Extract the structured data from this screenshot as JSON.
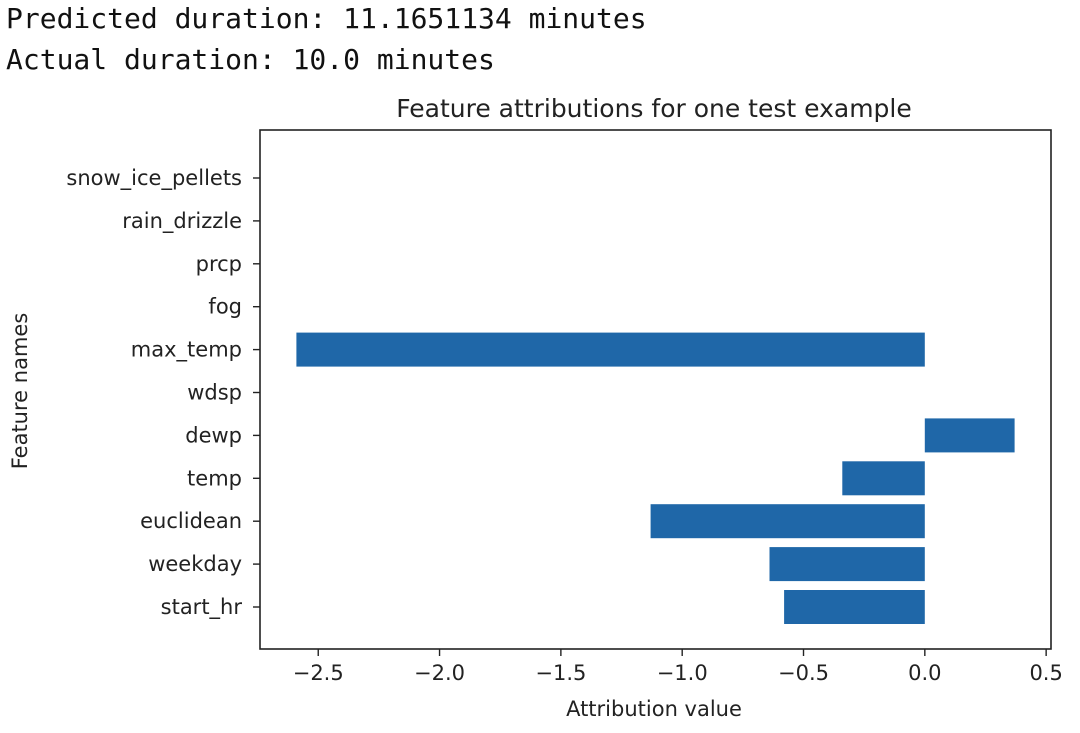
{
  "output": {
    "predicted": "Predicted duration: 11.1651134 minutes",
    "actual": "Actual duration: 10.0 minutes"
  },
  "chart_data": {
    "type": "bar",
    "orientation": "horizontal",
    "title": "Feature attributions for one test example",
    "xlabel": "Attribution value",
    "ylabel": "Feature names",
    "categories": [
      "snow_ice_pellets",
      "rain_drizzle",
      "prcp",
      "fog",
      "max_temp",
      "wdsp",
      "dewp",
      "temp",
      "euclidean",
      "weekday",
      "start_hr"
    ],
    "values": [
      0,
      0,
      0,
      0,
      -2.59,
      0,
      0.37,
      -0.34,
      -1.13,
      -0.64,
      -0.58
    ],
    "xlim": [
      -2.74,
      0.52
    ],
    "xticks": [
      -2.5,
      -2.0,
      -1.5,
      -1.0,
      -0.5,
      0.0,
      0.5
    ],
    "xtick_labels": [
      "−2.5",
      "−2.0",
      "−1.5",
      "−1.0",
      "−0.5",
      "0.0",
      "0.5"
    ],
    "bar_color": "#1f67a8",
    "grid": false
  }
}
